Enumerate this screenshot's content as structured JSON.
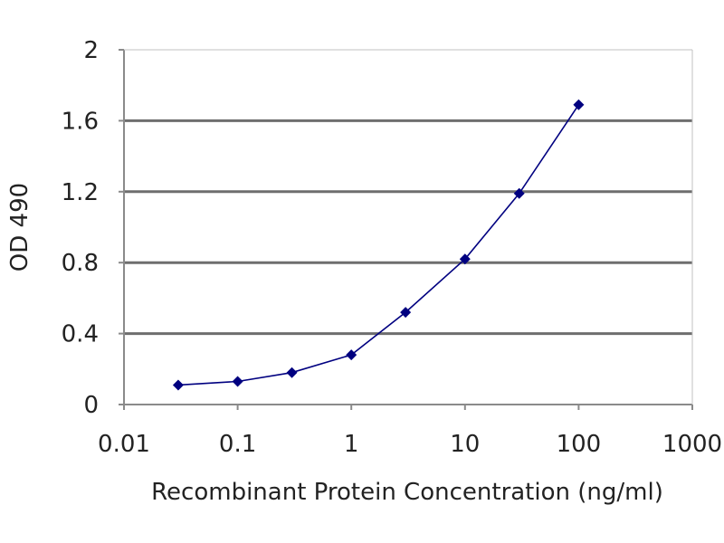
{
  "chart_data": {
    "type": "line",
    "title": "",
    "xlabel": "Recombinant Protein Concentration (ng/ml)",
    "ylabel": "OD 490",
    "x_scale": "log",
    "xlim": [
      0.01,
      1000
    ],
    "ylim": [
      0,
      2
    ],
    "x_ticks": [
      0.01,
      0.1,
      1,
      10,
      100,
      1000
    ],
    "x_tick_labels": [
      "0.01",
      "0.1",
      "1",
      "10",
      "100",
      "1000"
    ],
    "y_ticks": [
      0,
      0.4,
      0.8,
      1.2,
      1.6,
      2
    ],
    "y_tick_labels": [
      "0",
      "0.4",
      "0.8",
      "1.2",
      "1.6",
      "2"
    ],
    "grid": "horizontal",
    "series": [
      {
        "x": [
          0.03,
          0.1,
          0.3,
          1,
          3,
          10,
          30,
          100
        ],
        "y": [
          0.11,
          0.13,
          0.18,
          0.28,
          0.52,
          0.82,
          1.19,
          1.69
        ],
        "color": "#000080",
        "marker": "diamond"
      }
    ]
  }
}
